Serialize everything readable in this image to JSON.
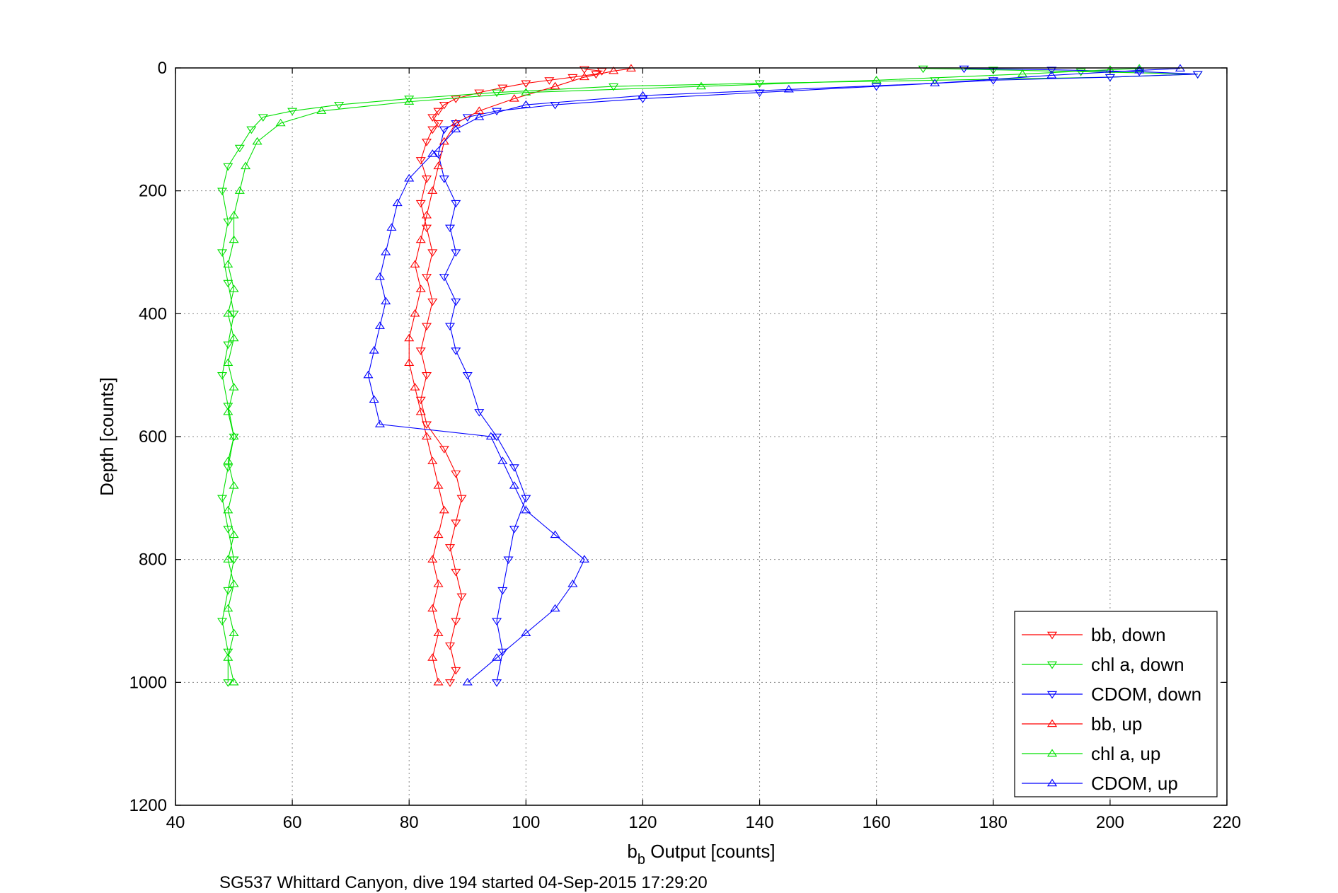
{
  "chart_data": {
    "type": "scatter",
    "xlabel": "b",
    "xlabel_sub": "b",
    "xlabel_rest": " Output [counts]",
    "ylabel": "Depth [counts]",
    "footer": "SG537 Whittard Canyon, dive 194 started 04-Sep-2015 17:29:20",
    "xlim": [
      40,
      220
    ],
    "ylim": [
      0,
      1200
    ],
    "y_reversed": true,
    "grid": true,
    "legend_position": "bottom-right",
    "xticks": [
      "40",
      "60",
      "80",
      "100",
      "120",
      "140",
      "160",
      "180",
      "200",
      "220"
    ],
    "yticks": [
      "0",
      "200",
      "400",
      "600",
      "800",
      "1000",
      "1200"
    ],
    "series": [
      {
        "name": "bb, down",
        "color": "#ff0000",
        "marker": "triangle-down",
        "points": [
          [
            110,
            2
          ],
          [
            113,
            5
          ],
          [
            112,
            10
          ],
          [
            108,
            15
          ],
          [
            104,
            20
          ],
          [
            100,
            25
          ],
          [
            96,
            32
          ],
          [
            92,
            40
          ],
          [
            88,
            50
          ],
          [
            86,
            60
          ],
          [
            85,
            70
          ],
          [
            84,
            80
          ],
          [
            85,
            90
          ],
          [
            84,
            100
          ],
          [
            83,
            120
          ],
          [
            82,
            150
          ],
          [
            83,
            180
          ],
          [
            82,
            220
          ],
          [
            83,
            260
          ],
          [
            84,
            300
          ],
          [
            83,
            340
          ],
          [
            84,
            380
          ],
          [
            83,
            420
          ],
          [
            82,
            460
          ],
          [
            83,
            500
          ],
          [
            82,
            540
          ],
          [
            83,
            580
          ],
          [
            86,
            620
          ],
          [
            88,
            660
          ],
          [
            89,
            700
          ],
          [
            88,
            740
          ],
          [
            87,
            780
          ],
          [
            88,
            820
          ],
          [
            89,
            860
          ],
          [
            88,
            900
          ],
          [
            87,
            940
          ],
          [
            88,
            980
          ],
          [
            87,
            1000
          ]
        ]
      },
      {
        "name": "chl a, down",
        "color": "#00e000",
        "marker": "triangle-down",
        "points": [
          [
            168,
            1
          ],
          [
            180,
            3
          ],
          [
            195,
            6
          ],
          [
            215,
            10
          ],
          [
            200,
            15
          ],
          [
            170,
            20
          ],
          [
            140,
            25
          ],
          [
            115,
            30
          ],
          [
            95,
            40
          ],
          [
            80,
            50
          ],
          [
            68,
            60
          ],
          [
            60,
            70
          ],
          [
            55,
            80
          ],
          [
            53,
            100
          ],
          [
            51,
            130
          ],
          [
            49,
            160
          ],
          [
            48,
            200
          ],
          [
            49,
            250
          ],
          [
            48,
            300
          ],
          [
            49,
            350
          ],
          [
            50,
            400
          ],
          [
            49,
            450
          ],
          [
            48,
            500
          ],
          [
            49,
            550
          ],
          [
            50,
            600
          ],
          [
            49,
            650
          ],
          [
            48,
            700
          ],
          [
            49,
            750
          ],
          [
            50,
            800
          ],
          [
            49,
            850
          ],
          [
            48,
            900
          ],
          [
            49,
            950
          ],
          [
            49,
            1000
          ]
        ]
      },
      {
        "name": "CDOM, down",
        "color": "#0000ff",
        "marker": "triangle-down",
        "points": [
          [
            175,
            1
          ],
          [
            190,
            3
          ],
          [
            205,
            6
          ],
          [
            215,
            10
          ],
          [
            200,
            15
          ],
          [
            180,
            20
          ],
          [
            160,
            30
          ],
          [
            140,
            40
          ],
          [
            120,
            50
          ],
          [
            105,
            60
          ],
          [
            95,
            70
          ],
          [
            90,
            80
          ],
          [
            88,
            90
          ],
          [
            86,
            100
          ],
          [
            85,
            140
          ],
          [
            86,
            180
          ],
          [
            88,
            220
          ],
          [
            87,
            260
          ],
          [
            88,
            300
          ],
          [
            86,
            340
          ],
          [
            88,
            380
          ],
          [
            87,
            420
          ],
          [
            88,
            460
          ],
          [
            90,
            500
          ],
          [
            92,
            560
          ],
          [
            95,
            600
          ],
          [
            98,
            650
          ],
          [
            100,
            700
          ],
          [
            98,
            750
          ],
          [
            97,
            800
          ],
          [
            96,
            850
          ],
          [
            95,
            900
          ],
          [
            96,
            950
          ],
          [
            95,
            1000
          ]
        ]
      },
      {
        "name": "bb, up",
        "color": "#ff0000",
        "marker": "triangle-up",
        "points": [
          [
            85,
            1000
          ],
          [
            84,
            960
          ],
          [
            85,
            920
          ],
          [
            84,
            880
          ],
          [
            85,
            840
          ],
          [
            84,
            800
          ],
          [
            85,
            760
          ],
          [
            86,
            720
          ],
          [
            85,
            680
          ],
          [
            84,
            640
          ],
          [
            83,
            600
          ],
          [
            82,
            560
          ],
          [
            81,
            520
          ],
          [
            80,
            480
          ],
          [
            80,
            440
          ],
          [
            81,
            400
          ],
          [
            82,
            360
          ],
          [
            81,
            320
          ],
          [
            82,
            280
          ],
          [
            83,
            240
          ],
          [
            84,
            200
          ],
          [
            85,
            160
          ],
          [
            86,
            120
          ],
          [
            88,
            90
          ],
          [
            92,
            70
          ],
          [
            98,
            50
          ],
          [
            105,
            30
          ],
          [
            110,
            15
          ],
          [
            115,
            5
          ],
          [
            118,
            1
          ]
        ]
      },
      {
        "name": "chl a, up",
        "color": "#00e000",
        "marker": "triangle-up",
        "points": [
          [
            50,
            1000
          ],
          [
            49,
            960
          ],
          [
            50,
            920
          ],
          [
            49,
            880
          ],
          [
            50,
            840
          ],
          [
            49,
            800
          ],
          [
            50,
            760
          ],
          [
            49,
            720
          ],
          [
            50,
            680
          ],
          [
            49,
            640
          ],
          [
            50,
            600
          ],
          [
            49,
            560
          ],
          [
            50,
            520
          ],
          [
            49,
            480
          ],
          [
            50,
            440
          ],
          [
            49,
            400
          ],
          [
            50,
            360
          ],
          [
            49,
            320
          ],
          [
            50,
            280
          ],
          [
            50,
            240
          ],
          [
            51,
            200
          ],
          [
            52,
            160
          ],
          [
            54,
            120
          ],
          [
            58,
            90
          ],
          [
            65,
            70
          ],
          [
            80,
            55
          ],
          [
            100,
            40
          ],
          [
            130,
            30
          ],
          [
            160,
            20
          ],
          [
            185,
            10
          ],
          [
            200,
            3
          ],
          [
            205,
            1
          ]
        ]
      },
      {
        "name": "CDOM, up",
        "color": "#0000ff",
        "marker": "triangle-up",
        "points": [
          [
            90,
            1000
          ],
          [
            95,
            960
          ],
          [
            100,
            920
          ],
          [
            105,
            880
          ],
          [
            108,
            840
          ],
          [
            110,
            800
          ],
          [
            105,
            760
          ],
          [
            100,
            720
          ],
          [
            98,
            680
          ],
          [
            96,
            640
          ],
          [
            94,
            600
          ],
          [
            75,
            580
          ],
          [
            74,
            540
          ],
          [
            73,
            500
          ],
          [
            74,
            460
          ],
          [
            75,
            420
          ],
          [
            76,
            380
          ],
          [
            75,
            340
          ],
          [
            76,
            300
          ],
          [
            77,
            260
          ],
          [
            78,
            220
          ],
          [
            80,
            180
          ],
          [
            84,
            140
          ],
          [
            88,
            100
          ],
          [
            92,
            80
          ],
          [
            100,
            60
          ],
          [
            120,
            45
          ],
          [
            145,
            35
          ],
          [
            170,
            25
          ],
          [
            190,
            12
          ],
          [
            205,
            4
          ],
          [
            212,
            1
          ]
        ]
      }
    ]
  }
}
